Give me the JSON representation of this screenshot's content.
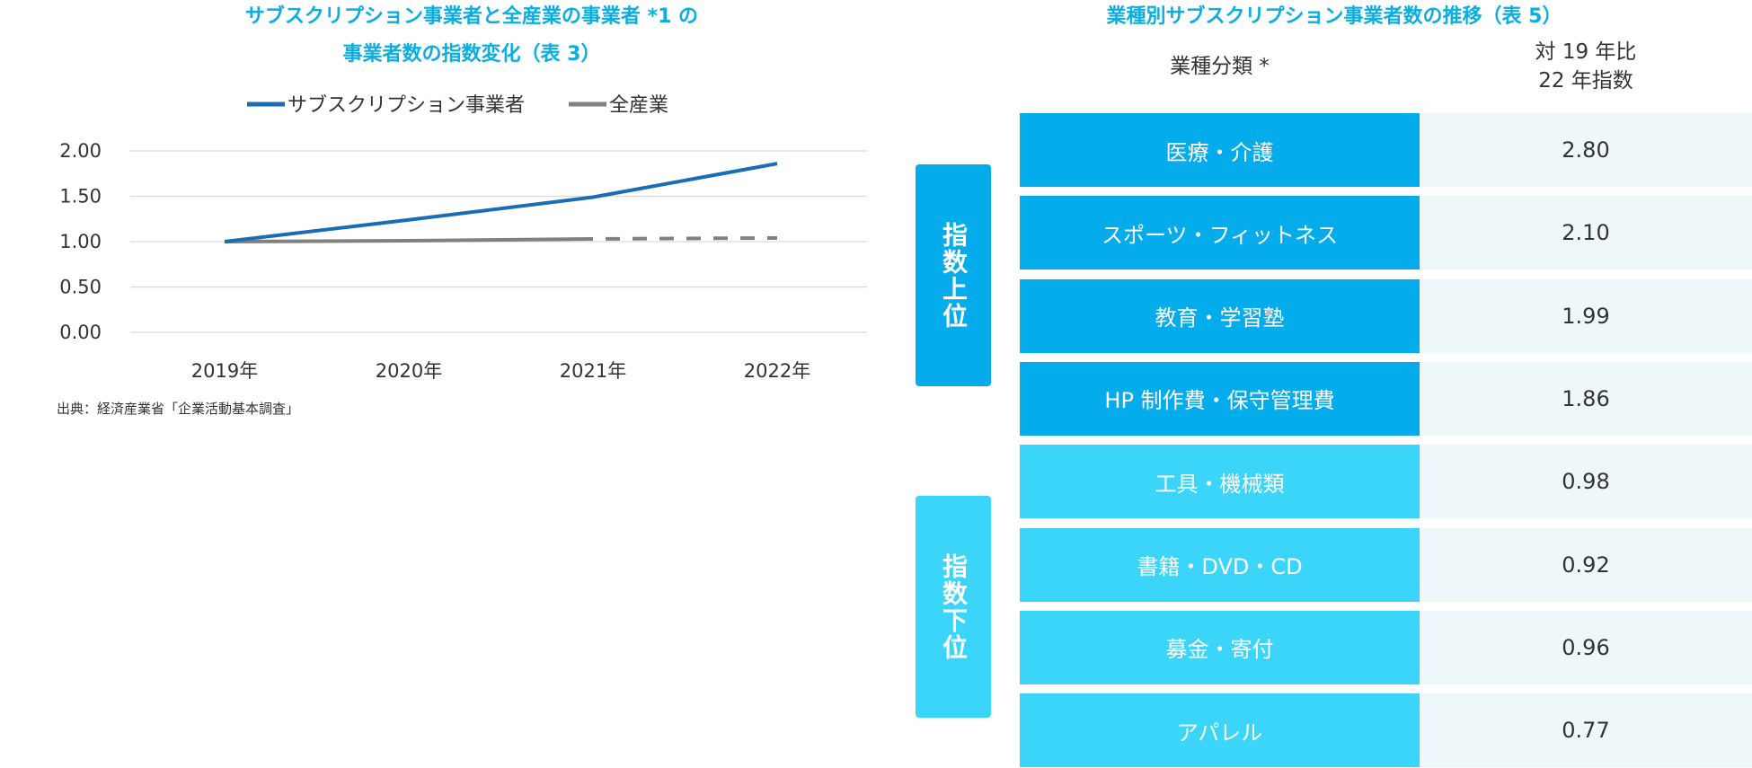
{
  "left_title": {
    "line1": "サブスクリプション事業者と全産業の事業者 *1 の",
    "line2": "事業者数の指数変化（表 3）"
  },
  "source": "出典：経済産業省「企業活動基本調査」",
  "right_title": "業種別サブスクリプション事業者数の推移（表 5）",
  "table_header": {
    "category": "業種分類 *",
    "value_line1": "対 19 年比",
    "value_line2": "22 年指数"
  },
  "groups": {
    "top": "指数上位",
    "bottom": "指数下位"
  },
  "colors": {
    "title": "#0aaee0",
    "subscription_line": "#1a6db5",
    "all_industry_line": "#808080",
    "top_fill": "#05acec",
    "bottom_fill": "#3bd5f9",
    "value_bg": "#eef8fb",
    "grid": "#d9d9d9"
  },
  "chart_data": [
    {
      "type": "line",
      "title": "サブスクリプション事業者と全産業の事業者 *1 の事業者数の指数変化（表 3）",
      "categories": [
        "2019年",
        "2020年",
        "2021年",
        "2022年"
      ],
      "series": [
        {
          "name": "サブスクリプション事業者",
          "values": [
            1.0,
            1.24,
            1.49,
            1.86
          ],
          "color": "#1a6db5"
        },
        {
          "name": "全産業",
          "values": [
            1.0,
            1.01,
            1.03,
            1.04
          ],
          "color": "#808080",
          "dashed_from_index": 2
        }
      ],
      "yticks": [
        "0.00",
        "0.50",
        "1.00",
        "1.50",
        "2.00"
      ],
      "ylim": [
        0,
        2
      ],
      "grid": true,
      "legend": "top"
    },
    {
      "type": "table",
      "title": "業種別サブスクリプション事業者数の推移（表 5）",
      "columns": [
        "業種分類 *",
        "対 19 年比 22 年指数"
      ],
      "rows": [
        {
          "group": "指数上位",
          "category": "医療・介護",
          "value": "2.80"
        },
        {
          "group": "指数上位",
          "category": "スポーツ・フィットネス",
          "value": "2.10"
        },
        {
          "group": "指数上位",
          "category": "教育・学習塾",
          "value": "1.99"
        },
        {
          "group": "指数上位",
          "category": "HP 制作費・保守管理費",
          "value": "1.86"
        },
        {
          "group": "指数下位",
          "category": "工具・機械類",
          "value": "0.98"
        },
        {
          "group": "指数下位",
          "category": "書籍・DVD・CD",
          "value": "0.92"
        },
        {
          "group": "指数下位",
          "category": "募金・寄付",
          "value": "0.96"
        },
        {
          "group": "指数下位",
          "category": "アパレル",
          "value": "0.77"
        }
      ]
    }
  ]
}
